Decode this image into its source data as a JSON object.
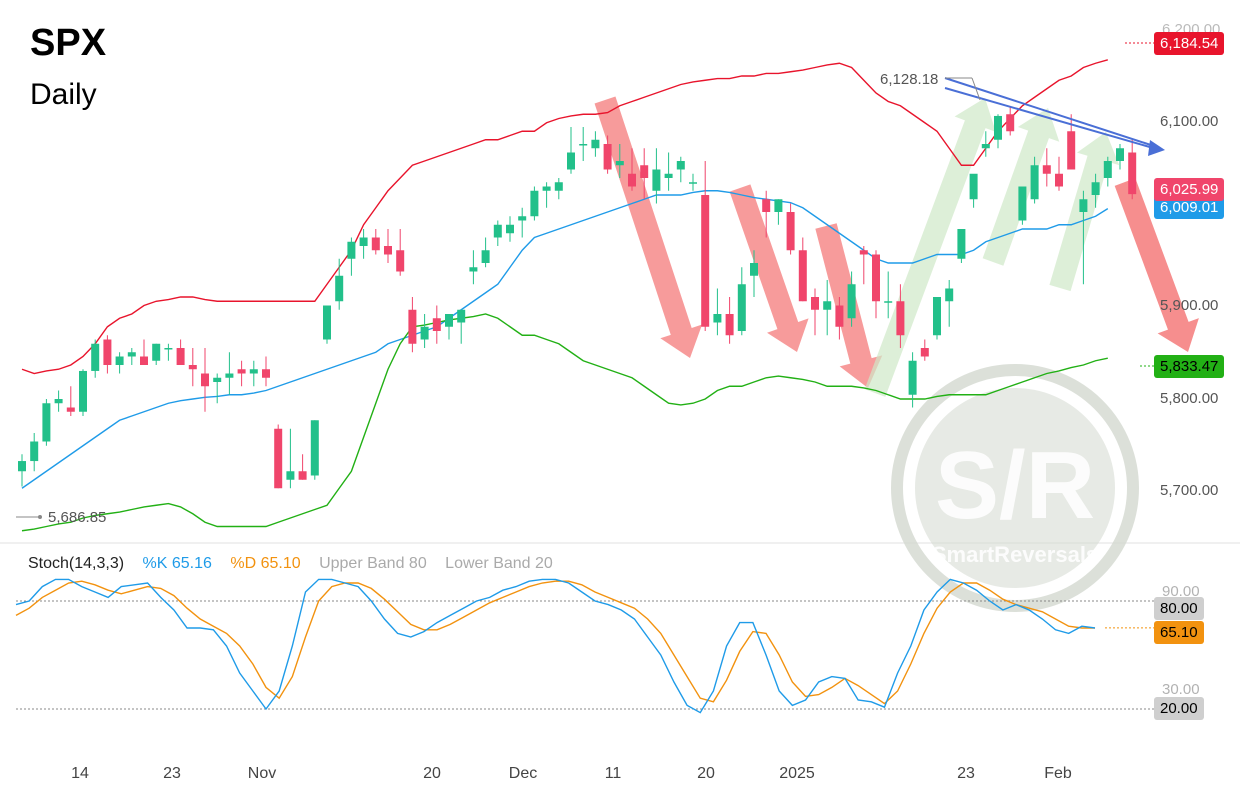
{
  "title": "SPX",
  "subtitle": "Daily",
  "colors": {
    "up": "#22c08a",
    "down": "#f0456b",
    "upper_band": "#e8142c",
    "mid_band": "#1f9be8",
    "lower_band": "#22b015",
    "k_line": "#1f9be8",
    "d_line": "#f2920f",
    "trend_line": "#4a6fd6",
    "down_arrow": "#f47a7a",
    "up_arrow": "#cfe8c8"
  },
  "price_axis": {
    "ticks": [
      "6,100.00",
      "5,900.00",
      "5,800.00",
      "5,700.00"
    ],
    "partial_top": "6,200.00"
  },
  "price_tags": {
    "upper": "6,184.54",
    "last": "6,025.99",
    "mid": "6,009.01",
    "lower": "5,833.47"
  },
  "annotations": {
    "high": "6,128.18",
    "low": "5,686.85"
  },
  "watermark": {
    "big": "S/R",
    "small": "SmartReversals"
  },
  "date_axis": [
    "14",
    "23",
    "Nov",
    "20",
    "Dec",
    "11",
    "20",
    "2025",
    "23",
    "Feb"
  ],
  "stoch": {
    "label": "Stoch(14,3,3)",
    "k_label": "%K 65.16",
    "d_label": "%D 65.10",
    "upper_label": "Upper Band 80",
    "lower_label": "Lower Band 20",
    "tags": {
      "upper": "80.00",
      "value": "65.10",
      "lower": "20.00"
    },
    "partial_ticks": [
      "90.00",
      "30.00"
    ]
  },
  "chart_data": {
    "type": "candlestick",
    "title": "SPX",
    "subtitle": "Daily",
    "ylim": [
      5625,
      6225
    ],
    "candles": [
      [
        5700,
        5720,
        5682,
        5712
      ],
      [
        5712,
        5745,
        5700,
        5735
      ],
      [
        5735,
        5785,
        5730,
        5780
      ],
      [
        5780,
        5795,
        5770,
        5785
      ],
      [
        5775,
        5800,
        5765,
        5770
      ],
      [
        5770,
        5820,
        5765,
        5818
      ],
      [
        5818,
        5855,
        5810,
        5850
      ],
      [
        5855,
        5860,
        5815,
        5825
      ],
      [
        5825,
        5840,
        5815,
        5835
      ],
      [
        5835,
        5845,
        5825,
        5840
      ],
      [
        5835,
        5855,
        5825,
        5825
      ],
      [
        5830,
        5850,
        5825,
        5850
      ],
      [
        5845,
        5850,
        5830,
        5845
      ],
      [
        5845,
        5855,
        5825,
        5825
      ],
      [
        5825,
        5845,
        5800,
        5820
      ],
      [
        5815,
        5845,
        5770,
        5800
      ],
      [
        5805,
        5815,
        5780,
        5810
      ],
      [
        5810,
        5840,
        5790,
        5815
      ],
      [
        5820,
        5830,
        5800,
        5815
      ],
      [
        5815,
        5830,
        5800,
        5820
      ],
      [
        5820,
        5835,
        5800,
        5810
      ],
      [
        5750,
        5755,
        5680,
        5680
      ],
      [
        5690,
        5750,
        5680,
        5700
      ],
      [
        5700,
        5720,
        5690,
        5690
      ],
      [
        5695,
        5760,
        5690,
        5760
      ],
      [
        5855,
        5895,
        5850,
        5895
      ],
      [
        5900,
        5950,
        5890,
        5930
      ],
      [
        5950,
        5975,
        5930,
        5970
      ],
      [
        5965,
        5985,
        5950,
        5975
      ],
      [
        5975,
        5985,
        5955,
        5960
      ],
      [
        5965,
        5985,
        5945,
        5955
      ],
      [
        5960,
        5985,
        5930,
        5935
      ],
      [
        5890,
        5905,
        5840,
        5850
      ],
      [
        5855,
        5885,
        5845,
        5870
      ],
      [
        5880,
        5895,
        5850,
        5865
      ],
      [
        5870,
        5885,
        5855,
        5885
      ],
      [
        5875,
        5890,
        5850,
        5890
      ],
      [
        5935,
        5960,
        5920,
        5940
      ],
      [
        5945,
        5975,
        5940,
        5960
      ],
      [
        5975,
        5995,
        5965,
        5990
      ],
      [
        5980,
        6000,
        5970,
        5990
      ],
      [
        5995,
        6010,
        5975,
        6000
      ],
      [
        6000,
        6035,
        5995,
        6030
      ],
      [
        6030,
        6040,
        6010,
        6035
      ],
      [
        6030,
        6045,
        6020,
        6040
      ],
      [
        6055,
        6105,
        6050,
        6075
      ],
      [
        6085,
        6105,
        6065,
        6085
      ],
      [
        6080,
        6100,
        6070,
        6090
      ],
      [
        6085,
        6095,
        6050,
        6055
      ],
      [
        6060,
        6085,
        6045,
        6065
      ],
      [
        6050,
        6080,
        6030,
        6035
      ],
      [
        6060,
        6080,
        6020,
        6045
      ],
      [
        6030,
        6080,
        6015,
        6055
      ],
      [
        6045,
        6075,
        6030,
        6050
      ],
      [
        6055,
        6070,
        6040,
        6065
      ],
      [
        6040,
        6050,
        6030,
        6040
      ],
      [
        6025,
        6065,
        5865,
        5870
      ],
      [
        5875,
        5915,
        5860,
        5885
      ],
      [
        5885,
        5905,
        5850,
        5860
      ],
      [
        5865,
        5940,
        5860,
        5920
      ],
      [
        5930,
        5960,
        5905,
        5945
      ],
      [
        6020,
        6030,
        5975,
        6005
      ],
      [
        6005,
        6020,
        5990,
        6020
      ],
      [
        6005,
        6015,
        5955,
        5960
      ],
      [
        5960,
        5975,
        5900,
        5900
      ],
      [
        5905,
        5915,
        5860,
        5890
      ],
      [
        5890,
        5925,
        5860,
        5900
      ],
      [
        5895,
        5905,
        5855,
        5870
      ],
      [
        5880,
        5935,
        5870,
        5920
      ],
      [
        5960,
        5965,
        5920,
        5955
      ],
      [
        5955,
        5960,
        5880,
        5900
      ],
      [
        5900,
        5935,
        5880,
        5900
      ],
      [
        5900,
        5920,
        5845,
        5860
      ],
      [
        5790,
        5840,
        5775,
        5830
      ],
      [
        5845,
        5855,
        5830,
        5835
      ],
      [
        5860,
        5905,
        5855,
        5905
      ],
      [
        5900,
        5925,
        5870,
        5915
      ],
      [
        5950,
        5985,
        5945,
        5985
      ],
      [
        6020,
        6045,
        6010,
        6050
      ],
      [
        6080,
        6100,
        6070,
        6085
      ],
      [
        6090,
        6120,
        6080,
        6118
      ],
      [
        6120,
        6128,
        6095,
        6100
      ],
      [
        5995,
        6035,
        5990,
        6035
      ],
      [
        6020,
        6070,
        6015,
        6060
      ],
      [
        6060,
        6080,
        6035,
        6050
      ],
      [
        6050,
        6070,
        6030,
        6035
      ],
      [
        6100,
        6120,
        6055,
        6055
      ],
      [
        6005,
        6030,
        5920,
        6020
      ],
      [
        6025,
        6050,
        6010,
        6040
      ],
      [
        6045,
        6070,
        6035,
        6065
      ],
      [
        6065,
        6085,
        6055,
        6080
      ],
      [
        6075,
        6090,
        6020,
        6026
      ]
    ],
    "upper_band": [
      5820,
      5815,
      5818,
      5820,
      5825,
      5835,
      5850,
      5870,
      5880,
      5885,
      5895,
      5900,
      5902,
      5905,
      5905,
      5902,
      5900,
      5900,
      5900,
      5900,
      5900,
      5900,
      5900,
      5900,
      5900,
      5920,
      5940,
      5960,
      5990,
      6010,
      6030,
      6045,
      6060,
      6065,
      6070,
      6075,
      6080,
      6085,
      6090,
      6090,
      6095,
      6100,
      6100,
      6110,
      6115,
      6118,
      6120,
      6120,
      6122,
      6130,
      6135,
      6140,
      6145,
      6150,
      6155,
      6158,
      6160,
      6162,
      6162,
      6165,
      6165,
      6168,
      6168,
      6170,
      6172,
      6175,
      6178,
      6180,
      6175,
      6160,
      6145,
      6135,
      6130,
      6120,
      6110,
      6100,
      6080,
      6060,
      6060,
      6080,
      6100,
      6115,
      6130,
      6140,
      6150,
      6160,
      6165,
      6175,
      6180,
      6184
    ],
    "mid_band": [
      5680,
      5690,
      5700,
      5710,
      5720,
      5730,
      5740,
      5750,
      5760,
      5765,
      5770,
      5775,
      5780,
      5783,
      5785,
      5787,
      5788,
      5790,
      5790,
      5792,
      5795,
      5800,
      5805,
      5810,
      5815,
      5820,
      5825,
      5830,
      5835,
      5840,
      5850,
      5855,
      5860,
      5865,
      5870,
      5880,
      5890,
      5900,
      5910,
      5920,
      5940,
      5960,
      5975,
      5980,
      5985,
      5990,
      5995,
      6000,
      6005,
      6010,
      6015,
      6020,
      6025,
      6025,
      6025,
      6028,
      6030,
      6030,
      6028,
      6025,
      6022,
      6020,
      6018,
      6016,
      6010,
      6000,
      5990,
      5980,
      5970,
      5960,
      5950,
      5945,
      5945,
      5945,
      5950,
      5955,
      5955,
      5955,
      5960,
      5970,
      5975,
      5980,
      5985,
      5985,
      5985,
      5990,
      5990,
      5995,
      6000,
      6009
    ],
    "lower_band": [
      5630,
      5632,
      5635,
      5638,
      5640,
      5645,
      5648,
      5650,
      5652,
      5655,
      5658,
      5660,
      5662,
      5658,
      5650,
      5640,
      5635,
      5635,
      5635,
      5635,
      5635,
      5640,
      5645,
      5650,
      5655,
      5660,
      5680,
      5700,
      5740,
      5780,
      5820,
      5850,
      5870,
      5872,
      5875,
      5878,
      5880,
      5882,
      5885,
      5880,
      5870,
      5860,
      5860,
      5855,
      5850,
      5840,
      5830,
      5825,
      5820,
      5815,
      5810,
      5800,
      5790,
      5780,
      5778,
      5780,
      5785,
      5795,
      5800,
      5800,
      5805,
      5810,
      5812,
      5810,
      5808,
      5805,
      5800,
      5800,
      5800,
      5798,
      5795,
      5790,
      5785,
      5785,
      5785,
      5788,
      5790,
      5790,
      5790,
      5790,
      5795,
      5800,
      5805,
      5810,
      5815,
      5818,
      5822,
      5825,
      5830,
      5833
    ],
    "stoch_k": [
      78,
      80,
      88,
      92,
      92,
      88,
      85,
      82,
      88,
      89,
      90,
      82,
      75,
      65,
      65,
      64,
      55,
      40,
      30,
      20,
      30,
      55,
      85,
      92,
      92,
      90,
      88,
      80,
      70,
      62,
      60,
      63,
      68,
      72,
      76,
      80,
      82,
      86,
      88,
      91,
      92,
      92,
      90,
      85,
      80,
      78,
      75,
      70,
      60,
      50,
      35,
      22,
      18,
      30,
      55,
      68,
      68,
      50,
      30,
      22,
      25,
      35,
      38,
      37,
      25,
      24,
      21,
      40,
      55,
      75,
      85,
      92,
      90,
      86,
      80,
      75,
      78,
      75,
      70,
      64,
      62,
      66,
      65
    ],
    "stoch_d": [
      72,
      76,
      82,
      86,
      90,
      91,
      89,
      86,
      84,
      86,
      88,
      87,
      83,
      76,
      70,
      66,
      62,
      55,
      45,
      32,
      26,
      38,
      60,
      80,
      88,
      90,
      90,
      87,
      81,
      74,
      67,
      64,
      64,
      67,
      71,
      75,
      79,
      82,
      85,
      88,
      90,
      91,
      91,
      89,
      85,
      82,
      79,
      76,
      70,
      62,
      50,
      38,
      26,
      24,
      36,
      52,
      63,
      62,
      50,
      35,
      27,
      28,
      32,
      37,
      33,
      28,
      23,
      30,
      45,
      62,
      76,
      85,
      90,
      90,
      86,
      81,
      78,
      76,
      74,
      70,
      66,
      65,
      65
    ]
  }
}
